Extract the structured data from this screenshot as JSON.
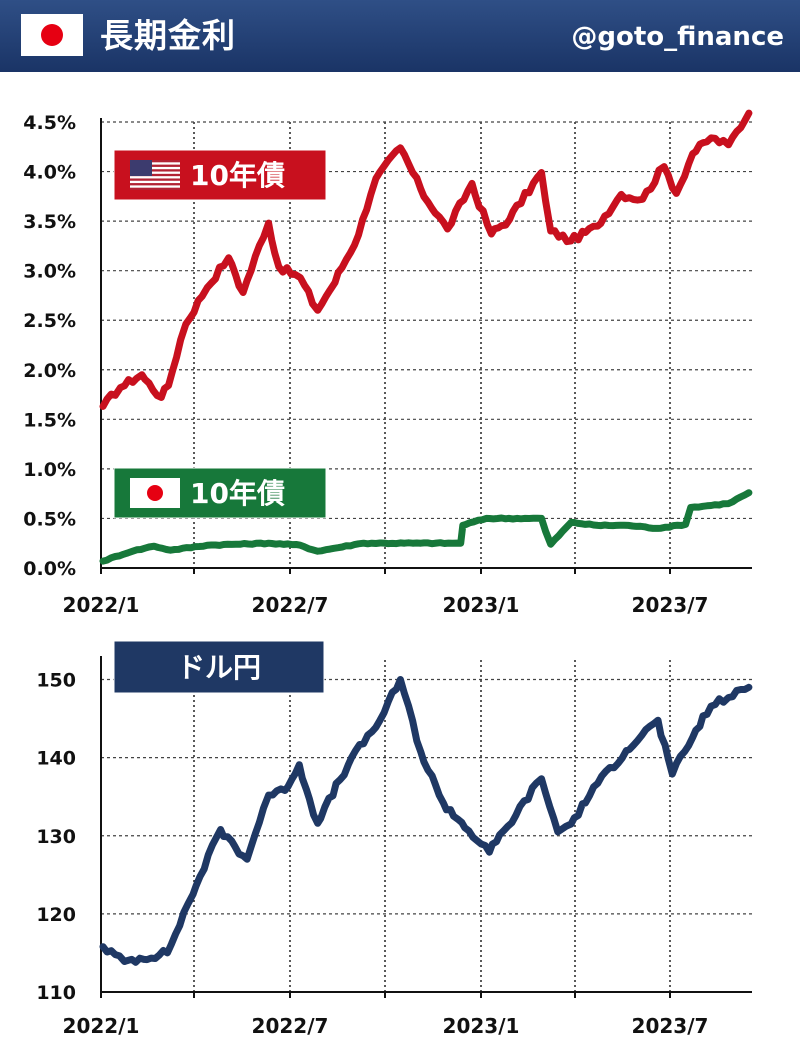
{
  "header": {
    "title": "長期金利",
    "handle": "@goto_finance",
    "flag_icon": "japan-flag-icon"
  },
  "colors": {
    "us_line": "#c8101e",
    "jp_line": "#17783a",
    "usdjpy_line": "#1f3864",
    "header_bg": "#1f3b6e"
  },
  "chart_data": [
    {
      "type": "line",
      "x_tick_labels": [
        "2022/1",
        "2022/7",
        "2023/1",
        "2023/7"
      ],
      "y_tick_labels": [
        "0.0%",
        "0.5%",
        "1.0%",
        "1.5%",
        "2.0%",
        "2.5%",
        "3.0%",
        "3.5%",
        "4.0%",
        "4.5%"
      ],
      "ylim": [
        0,
        4.5
      ],
      "xlim": [
        "2022-01-01",
        "2023-09-30"
      ],
      "grid": true,
      "series": [
        {
          "name": "10年債",
          "legend_icon": "us-flag-icon",
          "dates": [
            "2022-01-03",
            "2022-01-20",
            "2022-02-10",
            "2022-03-01",
            "2022-03-08",
            "2022-03-25",
            "2022-04-15",
            "2022-05-06",
            "2022-05-20",
            "2022-06-14",
            "2022-06-24",
            "2022-07-15",
            "2022-08-01",
            "2022-08-18",
            "2022-09-10",
            "2022-09-27",
            "2022-10-21",
            "2022-11-10",
            "2022-12-06",
            "2022-12-30",
            "2023-01-18",
            "2023-02-05",
            "2023-03-08",
            "2023-03-17",
            "2023-04-06",
            "2023-05-02",
            "2023-05-25",
            "2023-06-15",
            "2023-07-06",
            "2023-07-18",
            "2023-08-03",
            "2023-08-21",
            "2023-09-07",
            "2023-09-27"
          ],
          "values": [
            1.63,
            1.82,
            1.95,
            1.72,
            1.84,
            2.46,
            2.83,
            3.13,
            2.78,
            3.48,
            3.04,
            2.93,
            2.6,
            2.88,
            3.36,
            3.93,
            4.24,
            3.82,
            3.42,
            3.88,
            3.37,
            3.52,
            3.99,
            3.4,
            3.3,
            3.45,
            3.77,
            3.72,
            4.05,
            3.78,
            4.18,
            4.34,
            4.27,
            4.59
          ]
        },
        {
          "name": "10年債",
          "legend_icon": "japan-flag-icon",
          "dates": [
            "2022-01-03",
            "2022-02-01",
            "2022-02-22",
            "2022-03-10",
            "2022-04-15",
            "2022-06-14",
            "2022-07-15",
            "2022-08-01",
            "2022-09-15",
            "2022-11-10",
            "2022-12-19",
            "2022-12-21",
            "2023-01-13",
            "2023-02-20",
            "2023-03-08",
            "2023-03-17",
            "2023-04-06",
            "2023-05-02",
            "2023-06-01",
            "2023-06-30",
            "2023-07-27",
            "2023-08-01",
            "2023-09-07",
            "2023-09-27"
          ],
          "values": [
            0.07,
            0.17,
            0.22,
            0.18,
            0.23,
            0.25,
            0.23,
            0.17,
            0.25,
            0.25,
            0.25,
            0.43,
            0.5,
            0.5,
            0.5,
            0.24,
            0.46,
            0.43,
            0.43,
            0.4,
            0.44,
            0.61,
            0.65,
            0.76
          ]
        }
      ]
    },
    {
      "type": "line",
      "x_tick_labels": [
        "2022/1",
        "2022/7",
        "2023/1",
        "2023/7"
      ],
      "y_tick_labels": [
        "110",
        "120",
        "130",
        "140",
        "150"
      ],
      "ylim": [
        110,
        152.5
      ],
      "xlim": [
        "2022-01-01",
        "2023-09-30"
      ],
      "grid": true,
      "series": [
        {
          "name": "ドル円",
          "dates": [
            "2022-01-03",
            "2022-01-24",
            "2022-03-07",
            "2022-04-01",
            "2022-04-28",
            "2022-05-24",
            "2022-06-14",
            "2022-06-30",
            "2022-07-14",
            "2022-08-01",
            "2022-08-31",
            "2022-10-01",
            "2022-10-21",
            "2022-11-10",
            "2022-12-02",
            "2022-12-20",
            "2023-01-16",
            "2023-02-03",
            "2023-03-08",
            "2023-03-24",
            "2023-04-06",
            "2023-05-02",
            "2023-05-30",
            "2023-06-30",
            "2023-07-14",
            "2023-08-03",
            "2023-08-21",
            "2023-09-07",
            "2023-09-27"
          ],
          "values": [
            115.8,
            113.9,
            115.0,
            122.5,
            130.8,
            127.0,
            135.2,
            135.8,
            139.1,
            131.6,
            139.1,
            144.8,
            150.0,
            140.7,
            134.2,
            131.7,
            127.9,
            131.2,
            137.3,
            130.5,
            131.5,
            136.7,
            140.9,
            144.8,
            137.9,
            142.6,
            146.6,
            147.7,
            149.0
          ]
        }
      ]
    }
  ]
}
